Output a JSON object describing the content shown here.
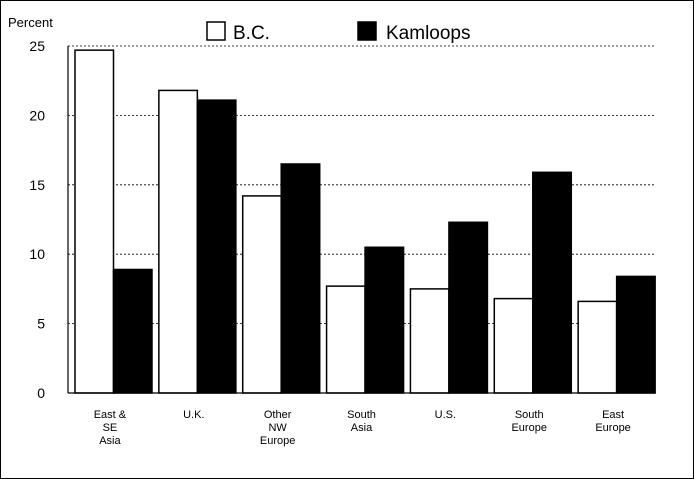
{
  "chart_data": {
    "type": "bar",
    "ylabel": "Percent",
    "ylim": [
      0,
      25
    ],
    "yticks": [
      "0",
      "5",
      "10",
      "15",
      "20",
      "25"
    ],
    "ytick_values": [
      0,
      5,
      10,
      15,
      20,
      25
    ],
    "grid": "horizontal dashed",
    "legend_position": "top",
    "categories": [
      [
        "East &",
        "SE",
        "Asia"
      ],
      [
        "U.K."
      ],
      [
        "Other",
        "NW",
        "Europe"
      ],
      [
        "South",
        "Asia"
      ],
      [
        "U.S."
      ],
      [
        "South",
        "Europe"
      ],
      [
        "East",
        "Europe"
      ]
    ],
    "series": [
      {
        "name": "B.C.",
        "color": "#ffffff",
        "values": [
          24.7,
          21.8,
          14.2,
          7.7,
          7.5,
          6.8,
          6.6
        ]
      },
      {
        "name": "Kamloops",
        "color": "#000000",
        "values": [
          8.9,
          21.1,
          16.5,
          10.5,
          12.3,
          15.9,
          8.4
        ]
      }
    ]
  }
}
